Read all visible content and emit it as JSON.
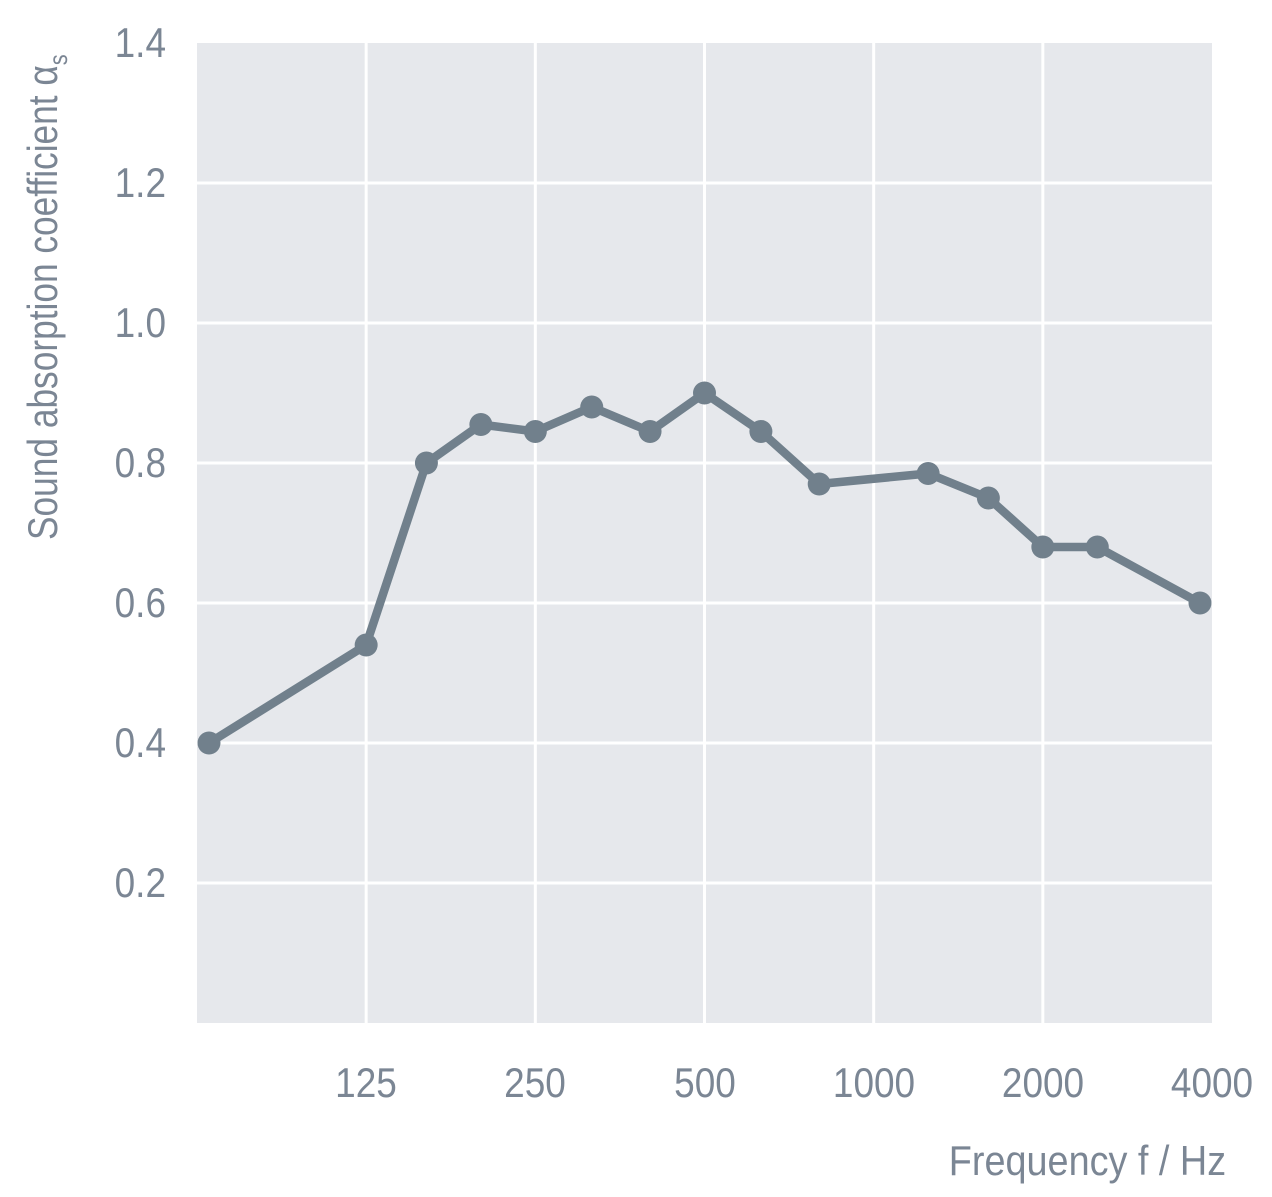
{
  "chart_data": {
    "type": "line",
    "xlabel": "Frequency f / Hz",
    "ylabel": "Sound absorption coefficient α",
    "ylabel_subscript": "s",
    "x_scale": "log",
    "x_domain_hz": [
      62.5,
      4000
    ],
    "ylim": [
      0,
      1.4
    ],
    "x_tick_labels": [
      "125",
      "250",
      "500",
      "1000",
      "2000",
      "4000"
    ],
    "x_tick_values": [
      125,
      250,
      500,
      1000,
      2000,
      4000
    ],
    "y_tick_labels": [
      "1.4",
      "1.2",
      "1.0",
      "0.8",
      "0.6",
      "0.4",
      "0.2"
    ],
    "y_tick_values": [
      1.4,
      1.2,
      1.0,
      0.8,
      0.6,
      0.4,
      0.2
    ],
    "grid": true,
    "legend": "none",
    "series": [
      {
        "name": "Sound absorption coefficient αs",
        "x": [
          63,
          125,
          160,
          200,
          250,
          315,
          400,
          500,
          630,
          800,
          1250,
          1600,
          2000,
          2500,
          4000
        ],
        "values": [
          0.4,
          0.54,
          0.8,
          0.855,
          0.845,
          0.88,
          0.845,
          0.9,
          0.845,
          0.77,
          0.785,
          0.75,
          0.68,
          0.68,
          0.6
        ]
      }
    ],
    "colors": {
      "line": "#71808C",
      "marker": "#71808C",
      "plot_background": "#E6E8EC",
      "gridline": "#FFFFFF",
      "text": "#7B8694",
      "page_background": "#FFFFFF"
    }
  }
}
